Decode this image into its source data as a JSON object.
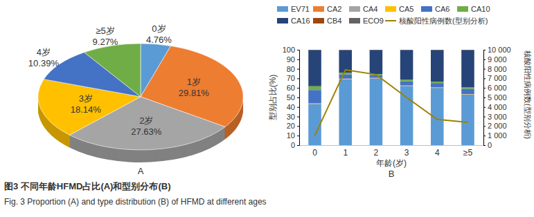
{
  "chart_data": [
    {
      "type": "pie",
      "title": "A",
      "categories": [
        "0岁",
        "1岁",
        "2岁",
        "3岁",
        "4岁",
        "≥5岁"
      ],
      "values": [
        4.76,
        29.81,
        27.63,
        18.14,
        10.39,
        9.27
      ],
      "value_labels": [
        "4.76%",
        "29.81%",
        "27.63%",
        "18.14%",
        "10.39%",
        "9.27%"
      ],
      "colors": [
        "#5b9bd5",
        "#ed7d31",
        "#a5a5a5",
        "#ffc000",
        "#4472c4",
        "#70ad47"
      ],
      "data_labels": true
    },
    {
      "type": "bar",
      "title": "B",
      "stacked": true,
      "legend": "top",
      "grid": false,
      "x_label": "年龄(岁)",
      "y_label": "型别占比(%)",
      "y2_label": "核酸阳性病例数(型别分析)",
      "categories": [
        "0",
        "1",
        "2",
        "3",
        "4",
        "≥5"
      ],
      "ylim": [
        0,
        100
      ],
      "yticks": [
        0,
        10,
        20,
        30,
        40,
        50,
        60,
        70,
        80,
        90,
        100
      ],
      "y2lim": [
        0,
        10000
      ],
      "y2ticks": [
        0,
        {
          "value": 1000,
          "label": "1 000"
        },
        {
          "value": 2000,
          "label": "2 000"
        },
        {
          "value": 3000,
          "label": "3 000"
        },
        {
          "value": 4000,
          "label": "4 000"
        },
        {
          "value": 5000,
          "label": "5 000"
        },
        {
          "value": 6000,
          "label": "6 000"
        },
        {
          "value": 7000,
          "label": "7 000"
        },
        {
          "value": 8000,
          "label": "8 000"
        },
        {
          "value": 9000,
          "label": "9 000"
        },
        {
          "value": 10000,
          "label": "10 000"
        }
      ],
      "series": [
        {
          "name": "EV71",
          "type": "bar",
          "color": "#5b9bd5",
          "values": [
            43,
            69,
            70,
            62,
            60,
            53
          ]
        },
        {
          "name": "CA2",
          "type": "bar",
          "color": "#ed7d31",
          "values": [
            0.3,
            0.2,
            0.2,
            0.2,
            0.2,
            0.2
          ]
        },
        {
          "name": "CA4",
          "type": "bar",
          "color": "#a5a5a5",
          "values": [
            0.2,
            0.2,
            0.2,
            0.2,
            0.2,
            0.2
          ]
        },
        {
          "name": "CA5",
          "type": "bar",
          "color": "#ffc000",
          "values": [
            0.3,
            0.3,
            0.2,
            0.2,
            0.2,
            0.2
          ]
        },
        {
          "name": "CA6",
          "type": "bar",
          "color": "#4472c4",
          "values": [
            14,
            4.5,
            3,
            4.5,
            4.5,
            5.5
          ]
        },
        {
          "name": "CA10",
          "type": "bar",
          "color": "#70ad47",
          "values": [
            4,
            1.8,
            1,
            1.5,
            1.5,
            1.5
          ]
        },
        {
          "name": "CA16",
          "type": "bar",
          "color": "#264478",
          "values": [
            38,
            23.7,
            25.2,
            31.2,
            33.2,
            39.2
          ]
        },
        {
          "name": "CB4",
          "type": "bar",
          "color": "#9e480e",
          "values": [
            0.1,
            0.1,
            0.1,
            0.1,
            0.1,
            0.1
          ]
        },
        {
          "name": "ECO9",
          "type": "bar",
          "color": "#636363",
          "values": [
            0.1,
            0.2,
            0.1,
            0.1,
            0.1,
            0.1
          ]
        },
        {
          "name": "核酸阳性病例数(型别分析)",
          "type": "line",
          "axis": "y2",
          "color": "#a08000",
          "line_style": "solid",
          "values": [
            1000,
            7900,
            7400,
            5000,
            2700,
            2400
          ]
        }
      ]
    }
  ],
  "caption": {
    "zh": "图3 不同年龄HFMD占比(A)和型别分布(B)",
    "en": "Fig. 3 Proportion (A) and type distribution (B) of HFMD at different ages"
  }
}
